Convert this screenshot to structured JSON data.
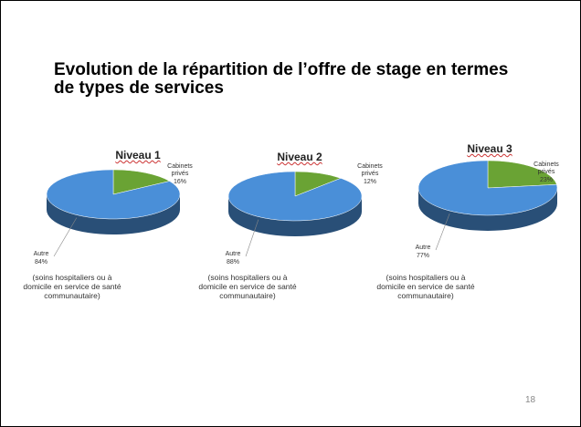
{
  "title": "Evolution de la répartition de l’offre de stage en termes de types de services",
  "page_number": "18",
  "chart_data": [
    {
      "type": "pie",
      "title": "Niveau 1",
      "categories": [
        "Cabinets privés",
        "Autre"
      ],
      "values": [
        16,
        84
      ],
      "value_labels": [
        "16%",
        "84%"
      ],
      "colors": [
        "#6aa334",
        "#4a8fd8"
      ],
      "annotation": "(soins hospitaliers ou à domicile en service de santé communautaire)"
    },
    {
      "type": "pie",
      "title": "Niveau 2",
      "categories": [
        "Cabinets privés",
        "Autre"
      ],
      "values": [
        12,
        88
      ],
      "value_labels": [
        "12%",
        "88%"
      ],
      "colors": [
        "#6aa334",
        "#4a8fd8"
      ],
      "annotation": "(soins hospitaliers ou à domicile en service de santé communautaire)"
    },
    {
      "type": "pie",
      "title": "Niveau 3",
      "categories": [
        "Cabinets privés",
        "Autre"
      ],
      "values": [
        23,
        77
      ],
      "value_labels": [
        "23%",
        "77%"
      ],
      "colors": [
        "#6aa334",
        "#4a8fd8"
      ],
      "annotation": "(soins hospitaliers ou à domicile en service de santé communautaire)"
    }
  ]
}
